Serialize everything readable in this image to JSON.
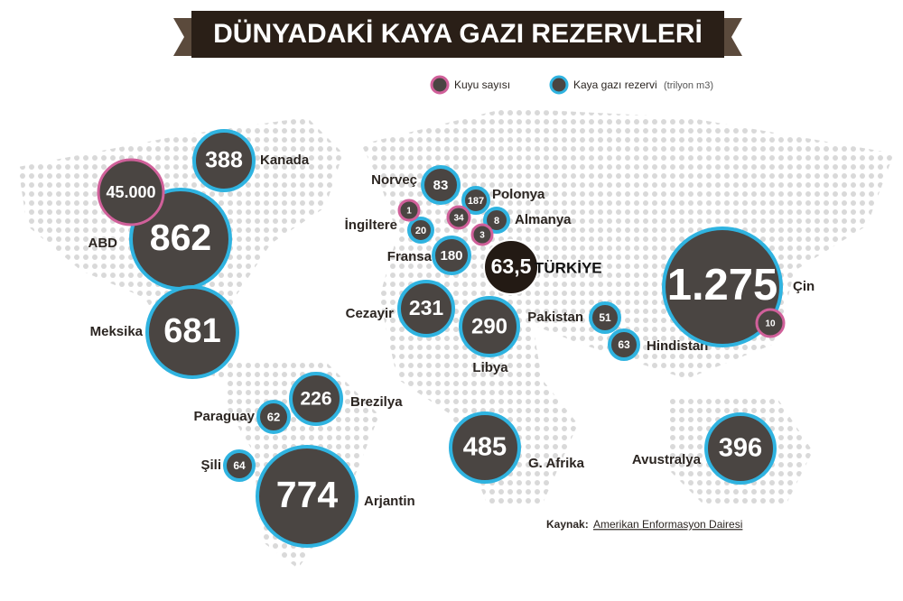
{
  "chart_data": {
    "type": "bubble-map",
    "title": "DÜNYADAKİ KAYA GAZI REZERVLERİ",
    "legend": [
      {
        "label": "Kuyu sayısı",
        "color": "#d0609a"
      },
      {
        "label": "Kaya gazı rezervi",
        "unit": "(trilyon m3)",
        "color": "#2fb3e0"
      }
    ],
    "countries": [
      {
        "name": "Kanada",
        "reserve": 388
      },
      {
        "name": "ABD",
        "reserve": 862,
        "wells": 45000,
        "wells_label": "45.000"
      },
      {
        "name": "Meksika",
        "reserve": 681
      },
      {
        "name": "Brezilya",
        "reserve": 226
      },
      {
        "name": "Paraguay",
        "reserve": 62
      },
      {
        "name": "Şili",
        "reserve": 64
      },
      {
        "name": "Arjantin",
        "reserve": 774
      },
      {
        "name": "Norveç",
        "reserve": 83
      },
      {
        "name": "Polonya",
        "reserve": 187,
        "wells": 34
      },
      {
        "name": "İngiltere",
        "reserve": 20,
        "wells": 1
      },
      {
        "name": "Almanya",
        "reserve": 8,
        "wells": 3
      },
      {
        "name": "Fransa",
        "reserve": 180
      },
      {
        "name": "TÜRKİYE",
        "reserve": 63.5,
        "reserve_label": "63,5"
      },
      {
        "name": "Cezayir",
        "reserve": 231
      },
      {
        "name": "Libya",
        "reserve": 290
      },
      {
        "name": "Pakistan",
        "reserve": 51
      },
      {
        "name": "Hindistan",
        "reserve": 63
      },
      {
        "name": "Çin",
        "reserve": 1275,
        "reserve_label": "1.275",
        "wells": 10
      },
      {
        "name": "G. Afrika",
        "reserve": 485
      },
      {
        "name": "Avustralya",
        "reserve": 396
      }
    ],
    "source": {
      "label": "Kaynak:",
      "text": "Amerikan Enformasyon Dairesi"
    }
  }
}
